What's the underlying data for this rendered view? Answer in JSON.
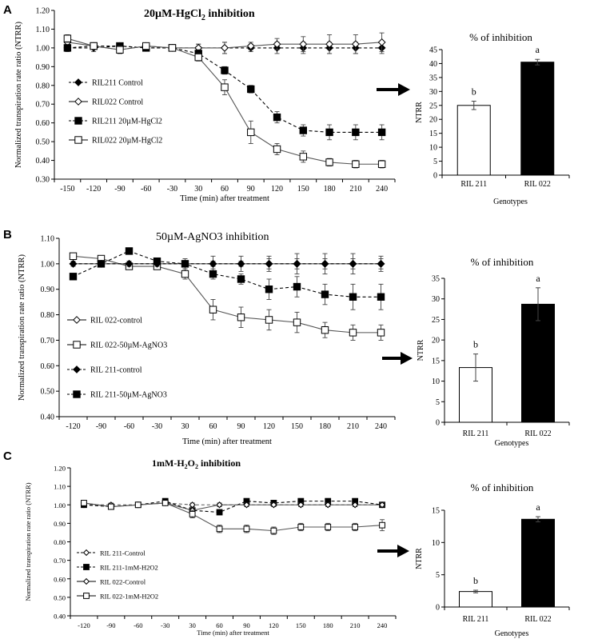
{
  "panels": [
    {
      "letter": "A",
      "line": {
        "type": "line",
        "title": "20µM-HgCl",
        "title_sub": "2",
        "title_suffix": " inhibition",
        "xlabel": "Time (min) after treatment",
        "ylabel": "Normalized transpiration rate ratio (NTRR)",
        "categories": [
          "-150",
          "-120",
          "-90",
          "-60",
          "-30",
          "30",
          "60",
          "90",
          "120",
          "150",
          "180",
          "210",
          "240"
        ],
        "ylim": [
          0.3,
          1.2
        ],
        "yticks": [
          "0.30",
          "0.40",
          "0.50",
          "0.60",
          "0.70",
          "0.80",
          "0.90",
          "1.00",
          "1.10",
          "1.20"
        ],
        "series": [
          {
            "name": "RIL211 Control",
            "marker": "diamond",
            "fill": "#000000",
            "dash": true,
            "values": [
              1.0,
              1.0,
              1.01,
              1.0,
              1.0,
              1.0,
              1.0,
              1.0,
              1.0,
              1.0,
              1.0,
              1.0,
              1.0
            ],
            "errors": [
              0.02,
              0.02,
              0.01,
              0.01,
              0.01,
              0.02,
              0.03,
              0.02,
              0.03,
              0.03,
              0.03,
              0.03,
              0.03
            ]
          },
          {
            "name": "RIL022 Control",
            "marker": "diamond",
            "fill": "#ffffff",
            "dash": false,
            "values": [
              1.03,
              1.01,
              0.99,
              1.01,
              1.0,
              1.0,
              1.0,
              1.01,
              1.02,
              1.02,
              1.02,
              1.02,
              1.03
            ],
            "errors": [
              0.02,
              0.01,
              0.02,
              0.01,
              0.01,
              0.02,
              0.03,
              0.02,
              0.03,
              0.04,
              0.05,
              0.05,
              0.05
            ]
          },
          {
            "name": "RIL211 20µM-HgCl2",
            "marker": "square",
            "fill": "#000000",
            "dash": true,
            "values": [
              1.0,
              1.01,
              1.01,
              1.0,
              1.0,
              0.97,
              0.88,
              0.78,
              0.63,
              0.56,
              0.55,
              0.55,
              0.55
            ],
            "errors": [
              0.01,
              0.01,
              0.01,
              0.01,
              0.01,
              0.02,
              0.02,
              0.02,
              0.03,
              0.03,
              0.04,
              0.04,
              0.04
            ]
          },
          {
            "name": "RIL022 20µM-HgCl2",
            "marker": "square",
            "fill": "#ffffff",
            "dash": false,
            "values": [
              1.05,
              1.01,
              0.99,
              1.01,
              1.0,
              0.95,
              0.79,
              0.55,
              0.46,
              0.42,
              0.39,
              0.38,
              0.38
            ],
            "errors": [
              0.02,
              0.01,
              0.02,
              0.01,
              0.01,
              0.02,
              0.04,
              0.06,
              0.03,
              0.03,
              0.02,
              0.02,
              0.02
            ]
          }
        ]
      },
      "bar": {
        "type": "bar",
        "title": "% of inhibition",
        "xlabel": "Genotypes",
        "ylabel": "NTRR",
        "categories": [
          "RIL 211",
          "RIL 022"
        ],
        "values": [
          25,
          40.5
        ],
        "errors": [
          1.5,
          1.0
        ],
        "letters": [
          "b",
          "a"
        ],
        "fills": [
          "#ffffff",
          "#000000"
        ],
        "ylim": [
          0,
          45
        ],
        "yticks": [
          "0",
          "5",
          "10",
          "15",
          "20",
          "25",
          "30",
          "35",
          "40",
          "45"
        ]
      }
    },
    {
      "letter": "B",
      "line": {
        "type": "line",
        "title": "50µM-AgNO3 inhibition",
        "xlabel": "Time (min) after  treatment",
        "ylabel": "Normalized transpiration rate ratio (NTRR)",
        "categories": [
          "-120",
          "-90",
          "-60",
          "-30",
          "30",
          "60",
          "90",
          "120",
          "150",
          "180",
          "210",
          "240"
        ],
        "ylim": [
          0.4,
          1.1
        ],
        "yticks": [
          "0.40",
          "0.50",
          "0.60",
          "0.70",
          "0.80",
          "0.90",
          "1.00",
          "1.10"
        ],
        "series": [
          {
            "name": "RIL 022-control",
            "marker": "diamond",
            "fill": "#ffffff",
            "dash": false,
            "values": [
              1.0,
              1.0,
              1.0,
              1.0,
              1.0,
              1.0,
              1.0,
              1.0,
              1.0,
              1.0,
              1.0,
              1.0
            ],
            "errors": [
              0.01,
              0.01,
              0.01,
              0.01,
              0.02,
              0.03,
              0.03,
              0.03,
              0.04,
              0.04,
              0.04,
              0.03
            ]
          },
          {
            "name": "RIL 022-50µM-AgNO3",
            "marker": "square",
            "fill": "#ffffff",
            "dash": false,
            "values": [
              1.03,
              1.02,
              0.99,
              0.99,
              0.96,
              0.82,
              0.79,
              0.78,
              0.77,
              0.74,
              0.73,
              0.73
            ],
            "errors": [
              0.01,
              0.01,
              0.01,
              0.01,
              0.02,
              0.04,
              0.04,
              0.04,
              0.04,
              0.03,
              0.03,
              0.03
            ]
          },
          {
            "name": "RIL 211-control",
            "marker": "diamond",
            "fill": "#000000",
            "dash": true,
            "values": [
              1.0,
              1.0,
              1.0,
              1.0,
              1.0,
              1.0,
              1.0,
              1.0,
              1.0,
              1.0,
              1.0,
              1.0
            ],
            "errors": [
              0.01,
              0.01,
              0.01,
              0.01,
              0.01,
              0.01,
              0.01,
              0.02,
              0.02,
              0.02,
              0.02,
              0.02
            ]
          },
          {
            "name": "RIL 211-50µM-AgNO3",
            "marker": "square",
            "fill": "#000000",
            "dash": true,
            "values": [
              0.95,
              1.0,
              1.05,
              1.01,
              1.0,
              0.96,
              0.94,
              0.9,
              0.91,
              0.88,
              0.87,
              0.87
            ],
            "errors": [
              0.01,
              0.01,
              0.01,
              0.01,
              0.01,
              0.02,
              0.02,
              0.04,
              0.04,
              0.04,
              0.05,
              0.05
            ]
          }
        ]
      },
      "bar": {
        "type": "bar",
        "title": "% of inhibition",
        "xlabel": "Genotypes",
        "ylabel": "NTRR",
        "categories": [
          "RIL 211",
          "RIL 022"
        ],
        "values": [
          13.3,
          28.7
        ],
        "errors": [
          3.3,
          4.0
        ],
        "letters": [
          "b",
          "a"
        ],
        "fills": [
          "#ffffff",
          "#000000"
        ],
        "ylim": [
          0,
          35
        ],
        "yticks": [
          "0",
          "5",
          "10",
          "15",
          "20",
          "25",
          "30",
          "35"
        ]
      }
    },
    {
      "letter": "C",
      "line": {
        "type": "line",
        "title": "1mM-H",
        "title_sub": "2",
        "title_mid": "O",
        "title_sub2": "2",
        "title_suffix": " inhibition",
        "xlabel": "Time (min) after  treatment",
        "ylabel": "Normalized transpiration  rate ratio (NTRR)",
        "categories": [
          "-120",
          "-90",
          "-60",
          "-30",
          "30",
          "60",
          "90",
          "120",
          "150",
          "180",
          "210",
          "240"
        ],
        "ylim": [
          0.4,
          1.2
        ],
        "yticks": [
          "0.40",
          "0.50",
          "0.60",
          "0.70",
          "0.80",
          "0.90",
          "1.00",
          "1.10",
          "1.20"
        ],
        "series": [
          {
            "name": "RIL 211-Control",
            "marker": "diamond",
            "fill": "#ffffff",
            "dash": true,
            "values": [
              1.0,
              1.0,
              1.0,
              1.01,
              1.0,
              1.0,
              1.0,
              1.0,
              1.0,
              1.0,
              1.0,
              1.0
            ],
            "errors": [
              0.01,
              0.01,
              0.01,
              0.01,
              0.01,
              0.01,
              0.01,
              0.01,
              0.01,
              0.01,
              0.01,
              0.01
            ]
          },
          {
            "name": "RIL 211-1mM-H2O2",
            "marker": "square",
            "fill": "#000000",
            "dash": true,
            "values": [
              1.0,
              0.99,
              1.0,
              1.02,
              0.97,
              0.96,
              1.02,
              1.01,
              1.02,
              1.02,
              1.02,
              1.0
            ],
            "errors": [
              0.01,
              0.01,
              0.01,
              0.01,
              0.01,
              0.01,
              0.01,
              0.01,
              0.01,
              0.01,
              0.01,
              0.01
            ]
          },
          {
            "name": "RIL 022-Control",
            "marker": "diamond",
            "fill": "#ffffff",
            "dash": false,
            "values": [
              1.01,
              0.99,
              1.0,
              1.01,
              0.97,
              1.0,
              1.0,
              1.0,
              1.0,
              1.0,
              1.0,
              1.0
            ],
            "errors": [
              0.01,
              0.01,
              0.01,
              0.01,
              0.01,
              0.01,
              0.01,
              0.01,
              0.01,
              0.01,
              0.01,
              0.01
            ]
          },
          {
            "name": "RIL 022-1mM-H2O2",
            "marker": "square",
            "fill": "#ffffff",
            "dash": false,
            "values": [
              1.01,
              0.99,
              1.0,
              1.01,
              0.95,
              0.87,
              0.87,
              0.86,
              0.88,
              0.88,
              0.88,
              0.89
            ],
            "errors": [
              0.01,
              0.01,
              0.01,
              0.01,
              0.02,
              0.02,
              0.02,
              0.02,
              0.02,
              0.02,
              0.02,
              0.03
            ]
          }
        ]
      },
      "bar": {
        "type": "bar",
        "title": "% of inhibition",
        "xlabel": "Genotypes",
        "ylabel": "NTRR",
        "categories": [
          "RIL 211",
          "RIL 022"
        ],
        "values": [
          2.4,
          13.6
        ],
        "errors": [
          0.2,
          0.4
        ],
        "letters": [
          "b",
          "a"
        ],
        "fills": [
          "#ffffff",
          "#000000"
        ],
        "ylim": [
          0,
          15
        ],
        "yticks": [
          "0",
          "5",
          "10",
          "15"
        ]
      }
    }
  ]
}
